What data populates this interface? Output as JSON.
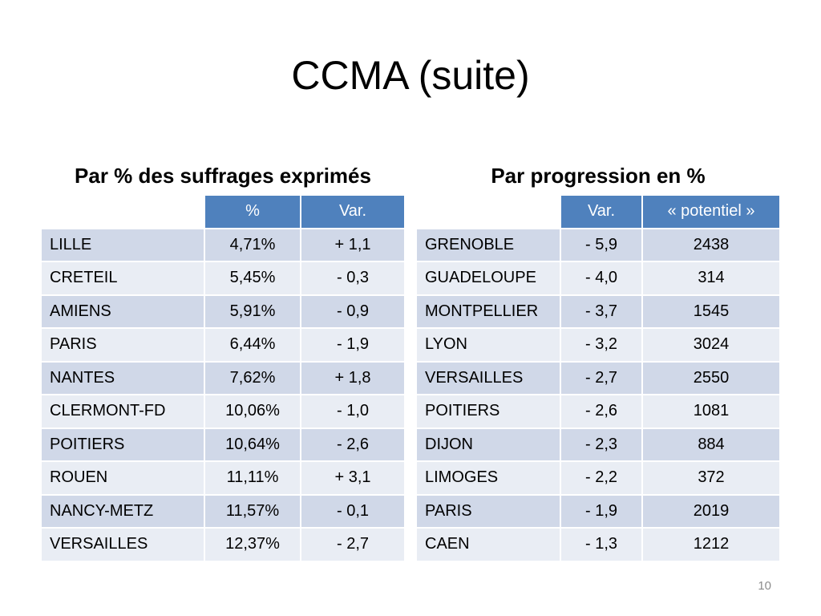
{
  "title": "CCMA (suite)",
  "left": {
    "subtitle": "Par % des suffrages exprimés",
    "headers": [
      "",
      "%",
      "Var."
    ],
    "rows": [
      [
        "LILLE",
        "4,71%",
        "+ 1,1"
      ],
      [
        "CRETEIL",
        "5,45%",
        "- 0,3"
      ],
      [
        "AMIENS",
        "5,91%",
        "- 0,9"
      ],
      [
        "PARIS",
        "6,44%",
        "- 1,9"
      ],
      [
        "NANTES",
        "7,62%",
        "+ 1,8"
      ],
      [
        "CLERMONT-FD",
        "10,06%",
        "- 1,0"
      ],
      [
        "POITIERS",
        "10,64%",
        "- 2,6"
      ],
      [
        "ROUEN",
        "11,11%",
        "+ 3,1"
      ],
      [
        "NANCY-METZ",
        "11,57%",
        "- 0,1"
      ],
      [
        "VERSAILLES",
        "12,37%",
        "- 2,7"
      ]
    ]
  },
  "right": {
    "subtitle": "Par progression en %",
    "headers": [
      "",
      "Var.",
      "« potentiel »"
    ],
    "rows": [
      [
        "GRENOBLE",
        "- 5,9",
        "2438"
      ],
      [
        "GUADELOUPE",
        "- 4,0",
        "314"
      ],
      [
        "MONTPELLIER",
        "- 3,7",
        "1545"
      ],
      [
        "LYON",
        "- 3,2",
        "3024"
      ],
      [
        "VERSAILLES",
        "- 2,7",
        "2550"
      ],
      [
        "POITIERS",
        "- 2,6",
        "1081"
      ],
      [
        "DIJON",
        "- 2,3",
        "884"
      ],
      [
        "LIMOGES",
        "- 2,2",
        "372"
      ],
      [
        "PARIS",
        "- 1,9",
        "2019"
      ],
      [
        "CAEN",
        "- 1,3",
        "1212"
      ]
    ]
  },
  "page_number": "10"
}
